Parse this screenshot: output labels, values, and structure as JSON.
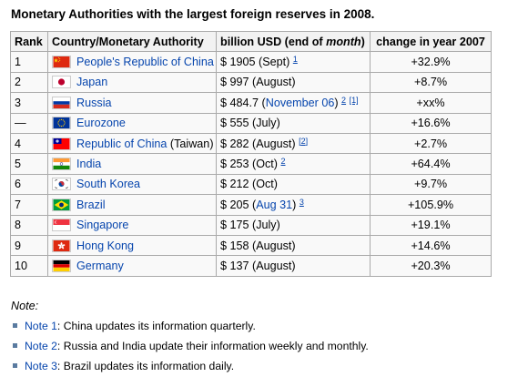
{
  "title": "Monetary Authorities with the largest foreign reserves in 2008.",
  "table": {
    "headers": {
      "rank": "Rank",
      "country": "Country/Monetary Authority",
      "reserves_prefix": "billion USD (end of ",
      "reserves_italic": "month",
      "reserves_suffix": ")",
      "change": "change in year 2007"
    },
    "rows": [
      {
        "rank": "1",
        "country": "People's Republic of China",
        "flag": "china",
        "amount": "$ 1905 ",
        "period": "(Sept)",
        "period_link": false,
        "sup": "1",
        "sup2": "",
        "change": "+32.9%"
      },
      {
        "rank": "2",
        "country": "Japan",
        "flag": "japan",
        "amount": "$ 997 ",
        "period": "(August)",
        "period_link": false,
        "sup": "",
        "sup2": "",
        "change": "+8.7%"
      },
      {
        "rank": "3",
        "country": "Russia",
        "flag": "russia",
        "amount": "$ 484.7 ",
        "period_pre": "(",
        "period": "November 06",
        "period_post": ")",
        "period_link": true,
        "sup": "2",
        "sup2": "[1]",
        "change": "+xx%"
      },
      {
        "rank": "—",
        "country": "Eurozone",
        "flag": "eu",
        "amount": "$ 555 ",
        "period": "(July)",
        "period_link": false,
        "sup": "",
        "sup2": "",
        "change": "+16.6%"
      },
      {
        "rank": "4",
        "country": "Republic of China",
        "country_suffix": " (Taiwan)",
        "flag": "taiwan",
        "amount": "$ 282 ",
        "period": "(August)",
        "period_link": false,
        "sup": "",
        "sup2": "[2]",
        "change": "+2.7%"
      },
      {
        "rank": "5",
        "country": "India",
        "flag": "india",
        "amount": "$ 253 ",
        "period": "(Oct)",
        "period_link": false,
        "sup": "2",
        "sup2": "",
        "change": "+64.4%"
      },
      {
        "rank": "6",
        "country": "South Korea",
        "flag": "korea",
        "amount": "$ 212 ",
        "period": "(Oct)",
        "period_link": false,
        "sup": "",
        "sup2": "",
        "change": "+9.7%"
      },
      {
        "rank": "7",
        "country": "Brazil",
        "flag": "brazil",
        "amount": "$ 205 ",
        "period_pre": "(",
        "period": "Aug 31",
        "period_post": ")",
        "period_link": true,
        "sup": "3",
        "sup2": "",
        "change": "+105.9%"
      },
      {
        "rank": "8",
        "country": "Singapore",
        "flag": "singapore",
        "amount": "$ 175 ",
        "period": "(July)",
        "period_link": false,
        "sup": "",
        "sup2": "",
        "change": "+19.1%"
      },
      {
        "rank": "9",
        "country": "Hong Kong",
        "flag": "hongkong",
        "amount": "$ 158 ",
        "period": "(August)",
        "period_link": false,
        "sup": "",
        "sup2": "",
        "change": "+14.6%"
      },
      {
        "rank": "10",
        "country": "Germany",
        "flag": "germany",
        "amount": "$ 137 ",
        "period": "(August)",
        "period_link": false,
        "sup": "",
        "sup2": "",
        "change": "+20.3%"
      }
    ]
  },
  "note_heading": "Note:",
  "notes": [
    {
      "label": "Note 1",
      "text": ": China updates its information quarterly."
    },
    {
      "label": "Note 2",
      "text": ": Russia and India update their information weekly and monthly."
    },
    {
      "label": "Note 3",
      "text": ": Brazil updates its information daily."
    }
  ],
  "colors": {
    "link": "#0645ad",
    "border": "#aaaaaa",
    "header_bg": "#f2f2f2",
    "cell_bg": "#f9f9f9",
    "bullet": "#5a7ba0"
  }
}
